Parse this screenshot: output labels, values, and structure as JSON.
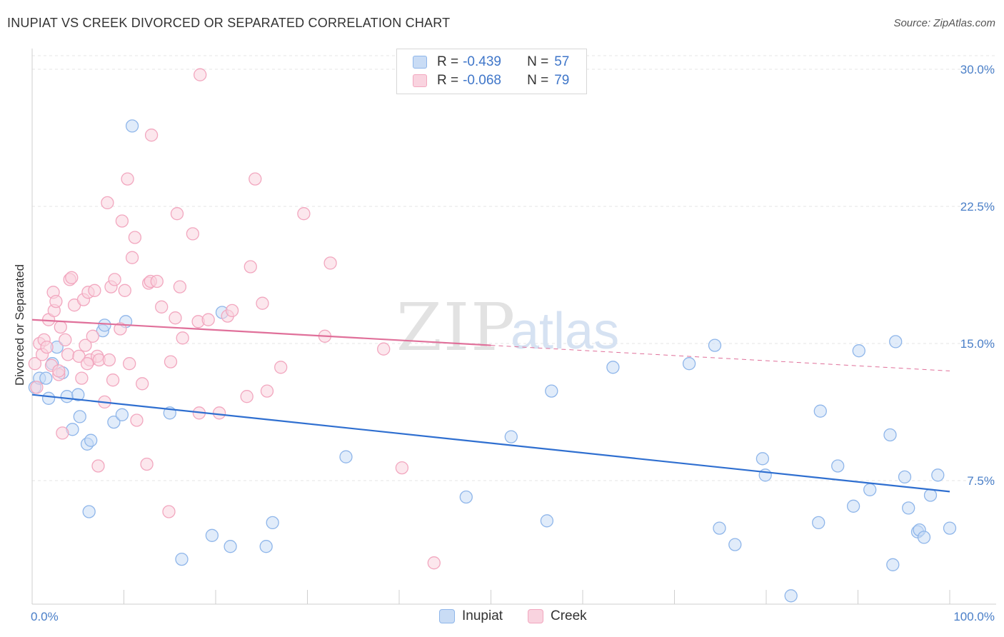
{
  "chart_data": {
    "type": "scatter",
    "title": "INUPIAT VS CREEK DIVORCED OR SEPARATED CORRELATION CHART",
    "source": "Source: ZipAtlas.com",
    "xlabel": "",
    "ylabel": "Divorced or Separated",
    "xlim": [
      0,
      100
    ],
    "ylim": [
      0,
      30
    ],
    "x_tick_labels": [
      "0.0%",
      "100.0%"
    ],
    "y_ticks": [
      7.5,
      15.0,
      22.5,
      30.0
    ],
    "y_tick_labels": [
      "7.5%",
      "15.0%",
      "22.5%",
      "30.0%"
    ],
    "grid": true,
    "watermark": {
      "zip": "ZIP",
      "atlas": "atlas"
    },
    "legend": [
      {
        "r_label": "R =",
        "r_value": "-0.439",
        "n_label": "N =",
        "n_value": "57"
      },
      {
        "r_label": "R =",
        "r_value": "-0.068",
        "n_label": "N =",
        "n_value": "79"
      }
    ],
    "series": [
      {
        "name": "Inupiat",
        "color": "#8fb6ea",
        "fill": "#c9dcf5",
        "line_color": "#2f6fd0",
        "trend": {
          "x": [
            0,
            100
          ],
          "y": [
            12.2,
            6.9
          ]
        },
        "points": [
          [
            0.3,
            12.6
          ],
          [
            0.8,
            13.1
          ],
          [
            1.5,
            13.1
          ],
          [
            1.8,
            12.0
          ],
          [
            2.2,
            13.9
          ],
          [
            2.7,
            14.8
          ],
          [
            3.3,
            13.4
          ],
          [
            3.8,
            12.1
          ],
          [
            4.4,
            10.3
          ],
          [
            5.0,
            12.2
          ],
          [
            5.2,
            11.0
          ],
          [
            6.0,
            9.5
          ],
          [
            6.4,
            9.7
          ],
          [
            6.2,
            5.8
          ],
          [
            7.7,
            15.7
          ],
          [
            7.9,
            16.0
          ],
          [
            8.9,
            10.7
          ],
          [
            9.8,
            11.1
          ],
          [
            10.2,
            16.2
          ],
          [
            10.9,
            26.9
          ],
          [
            15.0,
            11.2
          ],
          [
            16.3,
            3.2
          ],
          [
            19.6,
            4.5
          ],
          [
            20.7,
            16.7
          ],
          [
            21.6,
            3.9
          ],
          [
            25.5,
            3.9
          ],
          [
            26.2,
            5.2
          ],
          [
            34.2,
            8.8
          ],
          [
            47.3,
            6.6
          ],
          [
            52.2,
            9.9
          ],
          [
            56.1,
            5.3
          ],
          [
            56.6,
            12.4
          ],
          [
            63.3,
            13.7
          ],
          [
            71.6,
            13.9
          ],
          [
            74.4,
            14.9
          ],
          [
            74.9,
            4.9
          ],
          [
            76.6,
            4.0
          ],
          [
            79.6,
            8.7
          ],
          [
            79.9,
            7.8
          ],
          [
            82.7,
            1.2
          ],
          [
            85.7,
            5.2
          ],
          [
            85.9,
            11.3
          ],
          [
            87.8,
            8.3
          ],
          [
            89.5,
            6.1
          ],
          [
            90.1,
            14.6
          ],
          [
            91.3,
            7.0
          ],
          [
            93.5,
            10.0
          ],
          [
            93.8,
            2.9
          ],
          [
            94.1,
            15.1
          ],
          [
            95.1,
            7.7
          ],
          [
            95.5,
            6.0
          ],
          [
            96.5,
            4.7
          ],
          [
            96.7,
            4.8
          ],
          [
            97.2,
            4.4
          ],
          [
            97.9,
            6.7
          ],
          [
            98.7,
            7.8
          ],
          [
            100.0,
            4.9
          ]
        ]
      },
      {
        "name": "Creek",
        "color": "#f2a7bf",
        "fill": "#f9d3df",
        "line_color": "#e0709a",
        "trend": {
          "x": [
            0,
            50
          ],
          "y": [
            16.3,
            14.9
          ]
        },
        "trend_ext": {
          "x": [
            50,
            100
          ],
          "y": [
            14.9,
            13.5
          ]
        },
        "points": [
          [
            0.3,
            13.9
          ],
          [
            0.5,
            12.6
          ],
          [
            0.8,
            15.0
          ],
          [
            1.1,
            14.4
          ],
          [
            1.3,
            15.2
          ],
          [
            1.6,
            14.8
          ],
          [
            1.8,
            16.3
          ],
          [
            2.1,
            13.8
          ],
          [
            2.3,
            17.8
          ],
          [
            2.4,
            16.8
          ],
          [
            2.6,
            17.3
          ],
          [
            2.9,
            13.3
          ],
          [
            3.1,
            15.9
          ],
          [
            3.3,
            10.1
          ],
          [
            3.6,
            15.2
          ],
          [
            3.9,
            14.4
          ],
          [
            4.1,
            18.5
          ],
          [
            4.3,
            18.6
          ],
          [
            4.6,
            17.1
          ],
          [
            5.1,
            14.3
          ],
          [
            5.4,
            13.1
          ],
          [
            5.6,
            17.4
          ],
          [
            5.8,
            14.9
          ],
          [
            6.1,
            17.8
          ],
          [
            6.3,
            14.1
          ],
          [
            6.6,
            15.4
          ],
          [
            6.8,
            17.9
          ],
          [
            7.1,
            14.3
          ],
          [
            7.3,
            14.1
          ],
          [
            7.9,
            11.8
          ],
          [
            8.2,
            22.7
          ],
          [
            8.4,
            14.1
          ],
          [
            8.6,
            18.1
          ],
          [
            8.8,
            13.0
          ],
          [
            9.0,
            18.5
          ],
          [
            9.6,
            15.8
          ],
          [
            9.8,
            21.7
          ],
          [
            10.1,
            17.9
          ],
          [
            10.4,
            24.0
          ],
          [
            10.6,
            13.9
          ],
          [
            10.9,
            19.7
          ],
          [
            11.2,
            20.8
          ],
          [
            11.4,
            10.8
          ],
          [
            12.5,
            8.4
          ],
          [
            12.7,
            18.3
          ],
          [
            12.9,
            18.4
          ],
          [
            13.0,
            26.4
          ],
          [
            13.6,
            18.4
          ],
          [
            14.1,
            17.0
          ],
          [
            14.9,
            5.8
          ],
          [
            15.1,
            14.0
          ],
          [
            15.6,
            16.4
          ],
          [
            15.8,
            22.1
          ],
          [
            16.1,
            18.1
          ],
          [
            16.4,
            15.3
          ],
          [
            17.5,
            21.0
          ],
          [
            18.1,
            16.2
          ],
          [
            18.3,
            29.7
          ],
          [
            18.2,
            11.2
          ],
          [
            19.2,
            16.3
          ],
          [
            20.4,
            11.2
          ],
          [
            21.3,
            16.5
          ],
          [
            21.8,
            16.8
          ],
          [
            23.4,
            12.1
          ],
          [
            23.8,
            19.2
          ],
          [
            24.3,
            24.0
          ],
          [
            25.1,
            17.2
          ],
          [
            25.6,
            12.4
          ],
          [
            27.1,
            13.7
          ],
          [
            29.6,
            22.1
          ],
          [
            31.9,
            15.4
          ],
          [
            32.5,
            19.4
          ],
          [
            38.3,
            14.7
          ],
          [
            40.3,
            8.2
          ],
          [
            43.8,
            3.0
          ],
          [
            7.2,
            8.3
          ],
          [
            2.9,
            13.5
          ],
          [
            6.0,
            13.9
          ],
          [
            12.0,
            12.8
          ]
        ]
      }
    ]
  }
}
